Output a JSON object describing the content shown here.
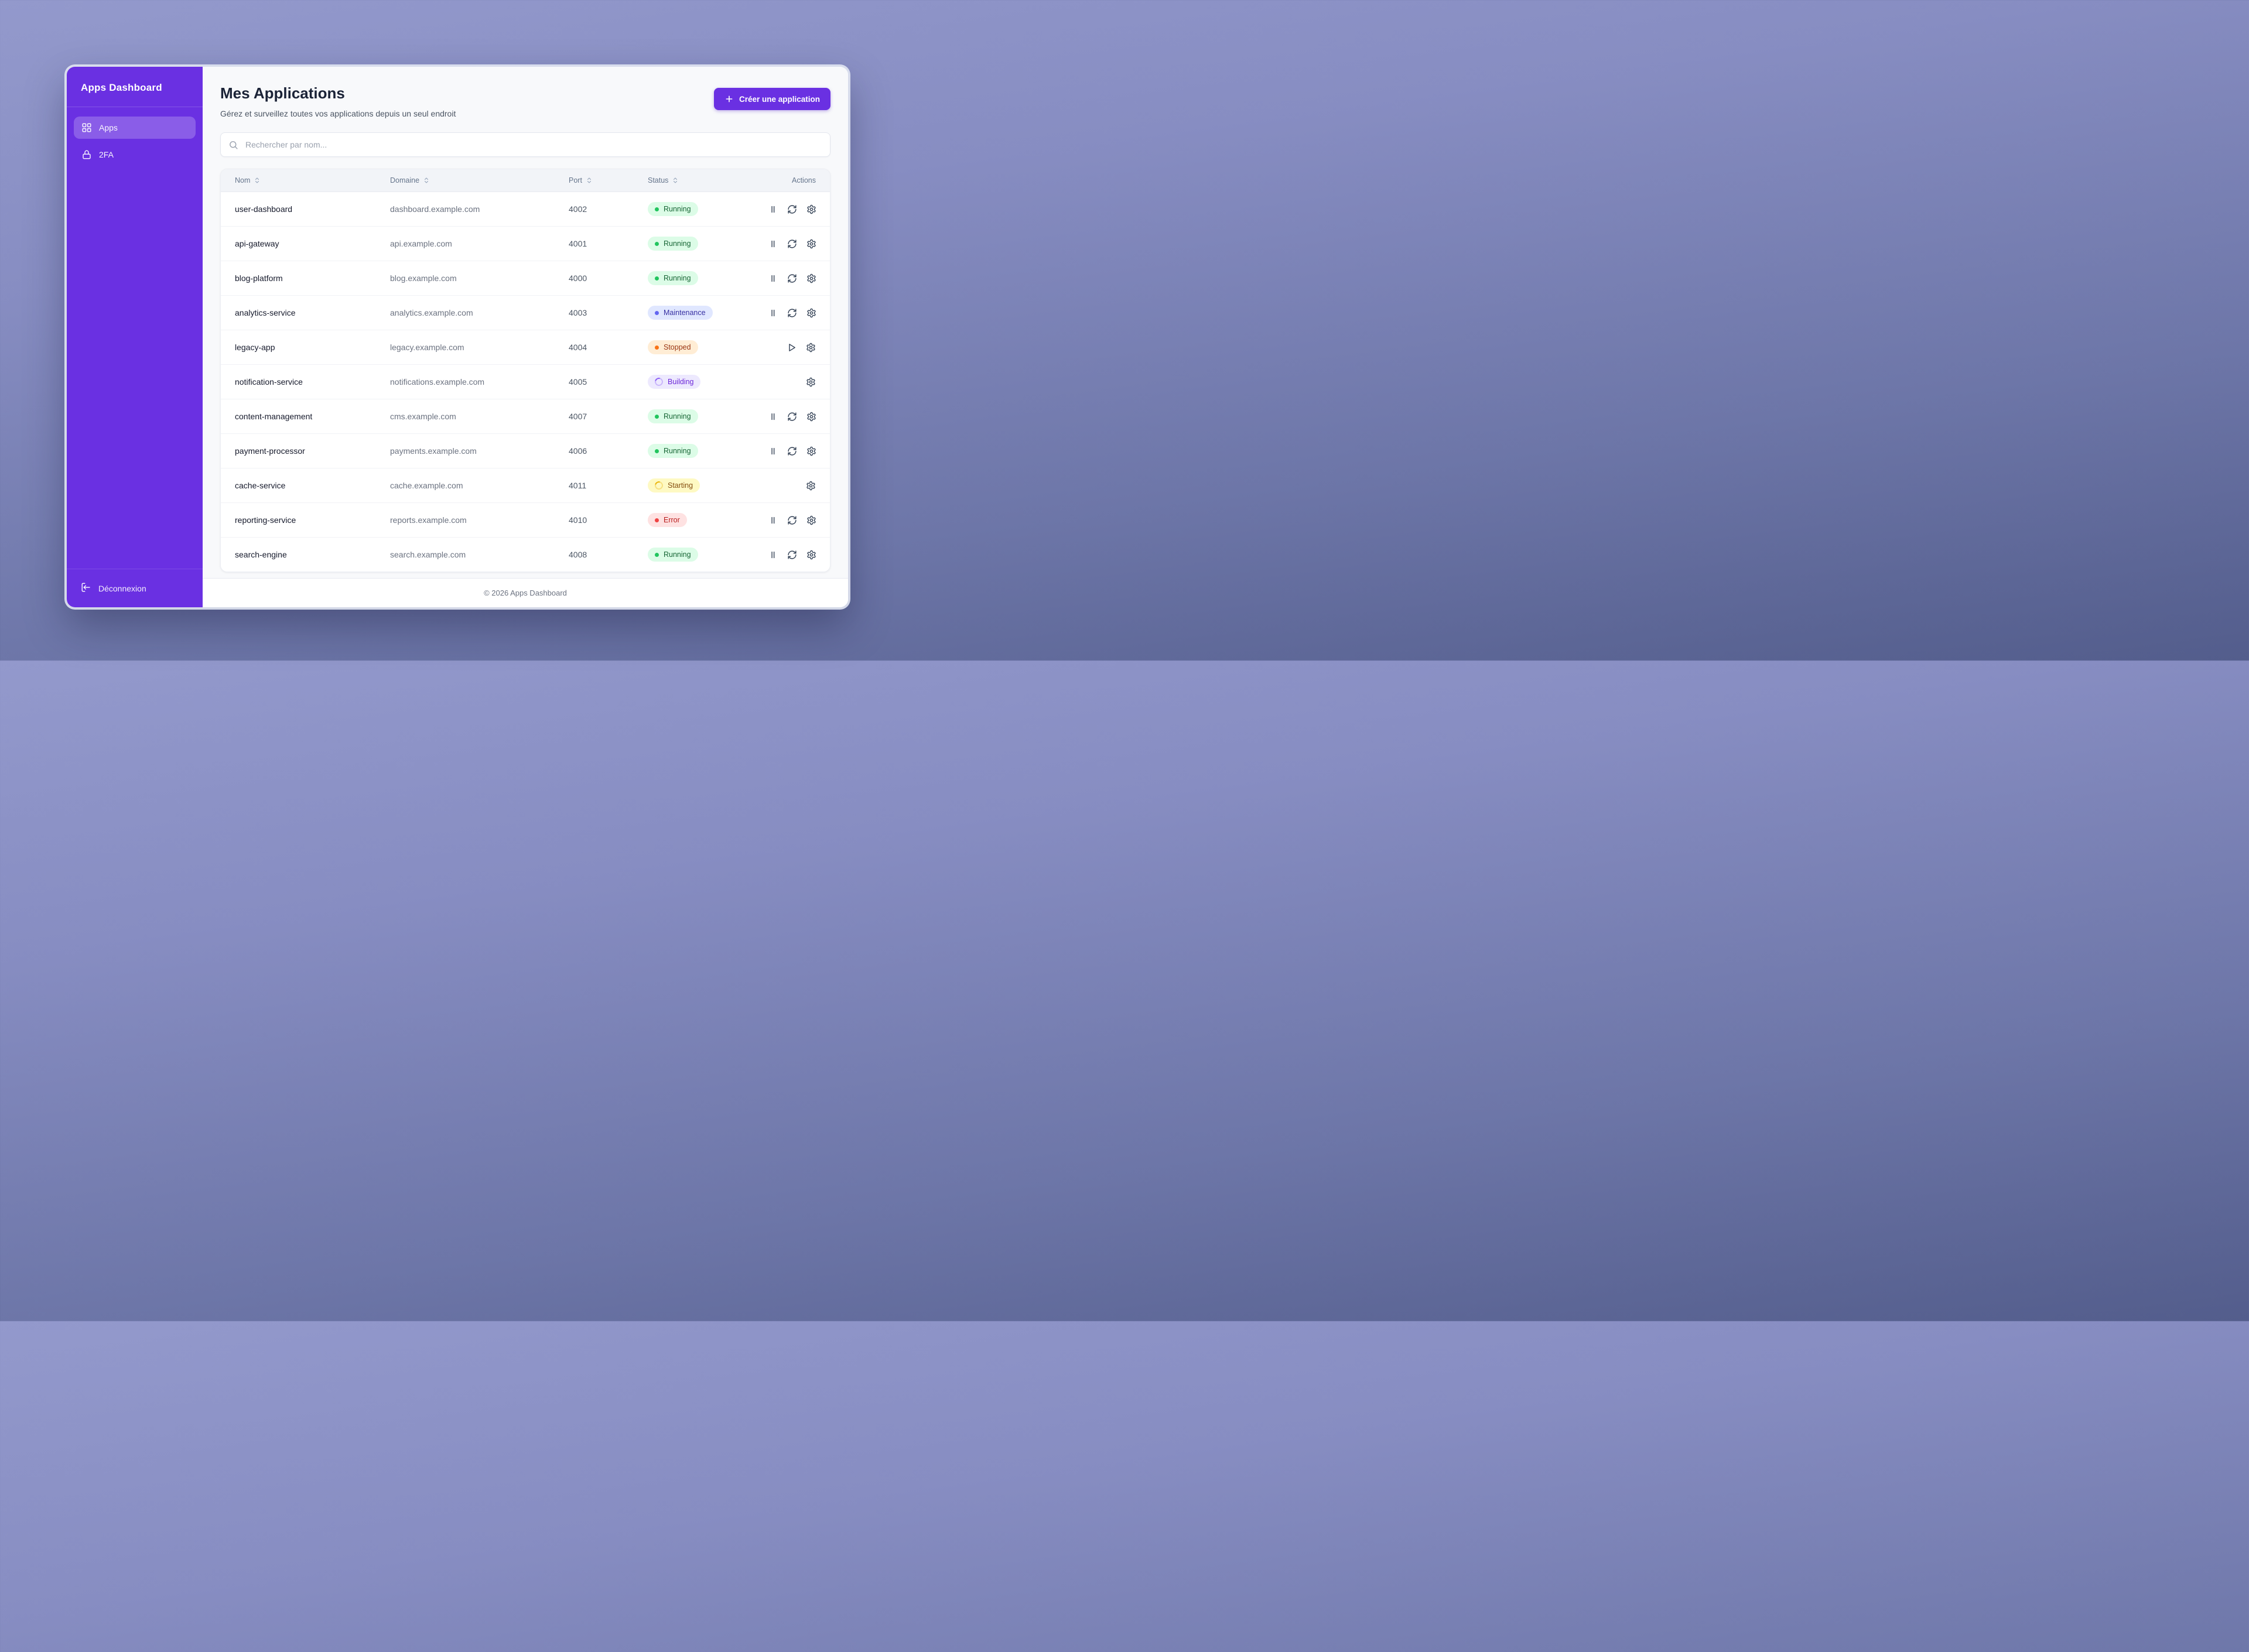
{
  "sidebar": {
    "title": "Apps Dashboard",
    "items": [
      {
        "label": "Apps",
        "icon": "grid-icon",
        "active": true
      },
      {
        "label": "2FA",
        "icon": "lock-icon",
        "active": false
      }
    ],
    "logout_label": "Déconnexion"
  },
  "header": {
    "title": "Mes Applications",
    "subtitle": "Gérez et surveillez toutes vos applications depuis un seul endroit",
    "create_button_label": "Créer une application"
  },
  "search": {
    "placeholder": "Rechercher par nom..."
  },
  "table": {
    "columns": [
      {
        "label": "Nom",
        "sortable": true
      },
      {
        "label": "Domaine",
        "sortable": true
      },
      {
        "label": "Port",
        "sortable": true
      },
      {
        "label": "Status",
        "sortable": true
      },
      {
        "label": "Actions",
        "sortable": false
      }
    ],
    "rows": [
      {
        "name": "user-dashboard",
        "domain": "dashboard.example.com",
        "port": "4002",
        "status": "Running",
        "status_type": "running",
        "actions": [
          "pause",
          "restart",
          "settings"
        ]
      },
      {
        "name": "api-gateway",
        "domain": "api.example.com",
        "port": "4001",
        "status": "Running",
        "status_type": "running",
        "actions": [
          "pause",
          "restart",
          "settings"
        ]
      },
      {
        "name": "blog-platform",
        "domain": "blog.example.com",
        "port": "4000",
        "status": "Running",
        "status_type": "running",
        "actions": [
          "pause",
          "restart",
          "settings"
        ]
      },
      {
        "name": "analytics-service",
        "domain": "analytics.example.com",
        "port": "4003",
        "status": "Maintenance",
        "status_type": "maintenance",
        "actions": [
          "pause",
          "restart",
          "settings"
        ]
      },
      {
        "name": "legacy-app",
        "domain": "legacy.example.com",
        "port": "4004",
        "status": "Stopped",
        "status_type": "stopped",
        "actions": [
          "play",
          "settings"
        ]
      },
      {
        "name": "notification-service",
        "domain": "notifications.example.com",
        "port": "4005",
        "status": "Building",
        "status_type": "building",
        "actions": [
          "settings"
        ]
      },
      {
        "name": "content-management",
        "domain": "cms.example.com",
        "port": "4007",
        "status": "Running",
        "status_type": "running",
        "actions": [
          "pause",
          "restart",
          "settings"
        ]
      },
      {
        "name": "payment-processor",
        "domain": "payments.example.com",
        "port": "4006",
        "status": "Running",
        "status_type": "running",
        "actions": [
          "pause",
          "restart",
          "settings"
        ]
      },
      {
        "name": "cache-service",
        "domain": "cache.example.com",
        "port": "4011",
        "status": "Starting",
        "status_type": "starting",
        "actions": [
          "settings"
        ]
      },
      {
        "name": "reporting-service",
        "domain": "reports.example.com",
        "port": "4010",
        "status": "Error",
        "status_type": "error",
        "actions": [
          "pause",
          "restart",
          "settings"
        ]
      },
      {
        "name": "search-engine",
        "domain": "search.example.com",
        "port": "4008",
        "status": "Running",
        "status_type": "running",
        "actions": [
          "pause",
          "restart",
          "settings"
        ]
      }
    ]
  },
  "status_styles": {
    "running": {
      "bg": "#dcfce7",
      "text": "#166534",
      "dot": "#22c55e",
      "indicator": "dot"
    },
    "maintenance": {
      "bg": "#e0e7ff",
      "text": "#3730a3",
      "dot": "#6366f1",
      "indicator": "dot"
    },
    "stopped": {
      "bg": "#ffedd5",
      "text": "#9a3412",
      "dot": "#f97316",
      "indicator": "dot"
    },
    "building": {
      "bg": "#ede9fe",
      "text": "#6d28d9",
      "dot": "#8b5cf6",
      "indicator": "spinner"
    },
    "starting": {
      "bg": "#fef9c3",
      "text": "#854d0e",
      "dot": "#eab308",
      "indicator": "spinner"
    },
    "error": {
      "bg": "#fee2e2",
      "text": "#b91c1c",
      "dot": "#ef4444",
      "indicator": "dot"
    }
  },
  "footer": {
    "copyright": "© 2026 Apps Dashboard"
  },
  "colors": {
    "accent": "#6a30e2",
    "window_bg": "#f8f9fb"
  }
}
